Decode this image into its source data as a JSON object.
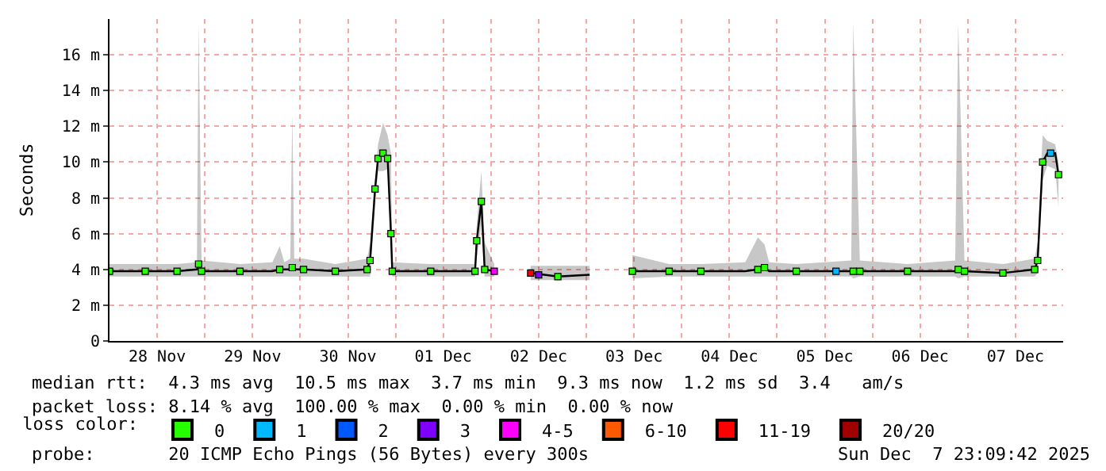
{
  "chart_data": {
    "type": "line",
    "ylabel": "Seconds",
    "legend_title": "loss color:",
    "legend": "bottom",
    "grid": true,
    "xlim": [
      "2025-11-28T00:00",
      "2025-12-08T00:00"
    ],
    "xticks": [
      {
        "value": "2025-11-28T12:00",
        "label": "28 Nov"
      },
      {
        "value": "2025-11-29T12:00",
        "label": "29 Nov"
      },
      {
        "value": "2025-11-30T12:00",
        "label": "30 Nov"
      },
      {
        "value": "2025-12-01T12:00",
        "label": "01 Dec"
      },
      {
        "value": "2025-12-02T12:00",
        "label": "02 Dec"
      },
      {
        "value": "2025-12-03T12:00",
        "label": "03 Dec"
      },
      {
        "value": "2025-12-04T12:00",
        "label": "04 Dec"
      },
      {
        "value": "2025-12-05T12:00",
        "label": "05 Dec"
      },
      {
        "value": "2025-12-06T12:00",
        "label": "06 Dec"
      },
      {
        "value": "2025-12-07T12:00",
        "label": "07 Dec"
      },
      {
        "value": "2025-11-29T00:00",
        "label": null
      },
      {
        "value": "2025-11-30T00:00",
        "label": null
      },
      {
        "value": "2025-12-01T00:00",
        "label": null
      },
      {
        "value": "2025-12-02T00:00",
        "label": null
      },
      {
        "value": "2025-12-03T00:00",
        "label": null
      },
      {
        "value": "2025-12-04T00:00",
        "label": null
      },
      {
        "value": "2025-12-05T00:00",
        "label": null
      },
      {
        "value": "2025-12-06T00:00",
        "label": null
      },
      {
        "value": "2025-12-07T00:00",
        "label": null
      }
    ],
    "ylim": [
      0,
      18
    ],
    "yticks": [
      0,
      {
        "value": 2,
        "label": "2 m"
      },
      {
        "value": 4,
        "label": "4 m"
      },
      {
        "value": 6,
        "label": "6 m"
      },
      {
        "value": 8,
        "label": "8 m"
      },
      {
        "value": 10,
        "label": "10 m"
      },
      {
        "value": 12,
        "label": "12 m"
      },
      {
        "value": 14,
        "label": "14 m"
      },
      {
        "value": 16,
        "label": "16 m"
      }
    ],
    "series": [
      {
        "color": "#000000",
        "marker": "none",
        "x": [
          "2025-11-28T00:00",
          "2025-11-28T09:00",
          "2025-11-28T17:00",
          "2025-11-28T22:00",
          "2025-11-28T22:25",
          "2025-11-28T23:10",
          "2025-11-29T08:50",
          "2025-11-29T17:00",
          "2025-11-29T18:50",
          "2025-11-29T20:00",
          "2025-11-29T21:30",
          "2025-11-29T22:00",
          "2025-11-29T22:30",
          "2025-11-30T00:50",
          "2025-11-30T08:50",
          "2025-11-30T16:50",
          "2025-11-30T17:35",
          "2025-11-30T18:50",
          "2025-11-30T19:35",
          "2025-11-30T20:50",
          "2025-11-30T22:00",
          "2025-11-30T22:50",
          "2025-11-30T23:10",
          "2025-12-01T08:50",
          "2025-12-01T20:00",
          "2025-12-01T20:25",
          "2025-12-01T21:35",
          "2025-12-01T22:25",
          "2025-12-02T00:50",
          "2025-12-02T04:50",
          "2025-12-02T10:00",
          "2025-12-02T16:50",
          "2025-12-03T00:50",
          "2025-12-03T04:50",
          "2025-12-03T11:35",
          "2025-12-03T20:50",
          "2025-12-04T04:50",
          "2025-12-04T16:00",
          "2025-12-04T19:10",
          "2025-12-04T20:50",
          "2025-12-04T22:00",
          "2025-12-05T04:50",
          "2025-12-05T18:40",
          "2025-12-05T19:10",
          "2025-12-05T20:50",
          "2025-12-06T08:50",
          "2025-12-06T20:50",
          "2025-12-06T21:35",
          "2025-12-06T23:10",
          "2025-12-07T08:50",
          "2025-12-07T16:50",
          "2025-12-07T17:35",
          "2025-12-07T18:50",
          "2025-12-07T20:00",
          "2025-12-07T22:00",
          "2025-12-07T22:50"
        ],
        "values": [
          3.9,
          3.9,
          3.9,
          4.0,
          4.3,
          3.9,
          3.9,
          3.9,
          4.0,
          4.0,
          4.0,
          4.1,
          4.0,
          4.0,
          3.9,
          4.0,
          4.5,
          8.5,
          10.2,
          10.5,
          10.2,
          6.0,
          3.9,
          3.9,
          3.9,
          5.6,
          7.8,
          4.0,
          3.9,
          null,
          3.8,
          3.6,
          3.7,
          null,
          3.9,
          3.9,
          3.9,
          3.9,
          4.0,
          4.1,
          3.9,
          3.9,
          3.9,
          3.9,
          3.9,
          3.9,
          3.9,
          4.0,
          3.9,
          3.8,
          4.0,
          4.5,
          10.0,
          10.5,
          10.5,
          9.3
        ],
        "lower": [
          3.6,
          3.6,
          3.6,
          3.6,
          3.6,
          3.6,
          3.6,
          3.6,
          3.6,
          3.6,
          3.6,
          3.6,
          3.6,
          3.6,
          3.6,
          3.6,
          3.6,
          7.5,
          9.5,
          9.5,
          9.6,
          5.5,
          3.6,
          3.6,
          3.6,
          4.6,
          6.5,
          3.6,
          3.6,
          null,
          3.4,
          3.4,
          3.4,
          null,
          3.5,
          3.6,
          3.6,
          3.6,
          3.6,
          3.6,
          3.6,
          3.6,
          3.6,
          3.5,
          3.6,
          3.6,
          3.6,
          3.5,
          3.6,
          3.6,
          3.6,
          3.8,
          9.0,
          9.8,
          9.6,
          7.5
        ],
        "upper": [
          4.3,
          4.3,
          4.3,
          4.4,
          17.8,
          4.5,
          4.3,
          4.4,
          5.3,
          4.4,
          4.6,
          12.7,
          4.6,
          4.6,
          4.3,
          4.6,
          5.5,
          9.0,
          11.0,
          12.2,
          11.5,
          10.5,
          4.4,
          4.3,
          4.3,
          6.5,
          9.5,
          5.5,
          4.3,
          null,
          4.2,
          4.2,
          4.2,
          null,
          4.8,
          4.3,
          4.3,
          4.4,
          5.8,
          5.4,
          4.4,
          4.3,
          4.5,
          17.8,
          4.5,
          4.3,
          4.5,
          17.8,
          4.5,
          4.3,
          4.6,
          5.5,
          11.5,
          11.2,
          11.0,
          10.0
        ]
      },
      {
        "type": "scatter",
        "name": "0",
        "color": "#26ff00",
        "marker": "square",
        "x": [
          "2025-11-28T00:00",
          "2025-11-28T09:00",
          "2025-11-28T17:00",
          "2025-11-28T22:25",
          "2025-11-28T23:10",
          "2025-11-29T08:50",
          "2025-11-29T18:50",
          "2025-11-29T22:00",
          "2025-11-30T00:50",
          "2025-11-30T08:50",
          "2025-11-30T16:50",
          "2025-11-30T17:35",
          "2025-11-30T18:50",
          "2025-11-30T19:35",
          "2025-11-30T20:50",
          "2025-11-30T22:00",
          "2025-11-30T22:50",
          "2025-11-30T23:10",
          "2025-12-01T08:50",
          "2025-12-01T20:00",
          "2025-12-01T20:25",
          "2025-12-01T21:35",
          "2025-12-01T22:25",
          "2025-12-02T16:50",
          "2025-12-03T11:35",
          "2025-12-03T20:50",
          "2025-12-04T04:50",
          "2025-12-04T19:10",
          "2025-12-04T20:50",
          "2025-12-05T04:50",
          "2025-12-05T19:10",
          "2025-12-05T20:50",
          "2025-12-06T08:50",
          "2025-12-06T21:35",
          "2025-12-06T23:10",
          "2025-12-07T08:50",
          "2025-12-07T16:50",
          "2025-12-07T17:35",
          "2025-12-07T18:50",
          "2025-12-07T22:50"
        ],
        "values": [
          3.9,
          3.9,
          3.9,
          4.3,
          3.9,
          3.9,
          4.0,
          4.1,
          4.0,
          3.9,
          4.0,
          4.5,
          8.5,
          10.2,
          10.5,
          10.2,
          6.0,
          3.9,
          3.9,
          3.9,
          5.6,
          7.8,
          4.0,
          3.6,
          3.9,
          3.9,
          3.9,
          4.0,
          4.1,
          3.9,
          3.9,
          3.9,
          3.9,
          4.0,
          3.9,
          3.8,
          4.0,
          4.5,
          10.0,
          9.3
        ]
      },
      {
        "type": "scatter",
        "name": "1",
        "color": "#00b8ff",
        "marker": "square",
        "x": [
          "2025-12-05T14:50",
          "2025-12-07T20:50"
        ],
        "values": [
          3.9,
          10.5
        ]
      },
      {
        "type": "scatter",
        "name": "2",
        "color": "#0059ff",
        "marker": "square"
      },
      {
        "type": "scatter",
        "name": "3",
        "color": "#7e00ff",
        "marker": "square",
        "x": [
          "2025-12-02T12:00"
        ],
        "values": [
          3.7
        ]
      },
      {
        "type": "scatter",
        "name": "4-5",
        "color": "#ff00ff",
        "marker": "square",
        "x": [
          "2025-12-02T00:50"
        ],
        "values": [
          3.9
        ]
      },
      {
        "type": "scatter",
        "name": "6-10",
        "color": "#ff5900",
        "marker": "square"
      },
      {
        "type": "scatter",
        "name": "11-19",
        "color": "#ff0000",
        "marker": "square",
        "x": [
          "2025-12-02T10:00"
        ],
        "values": [
          3.8
        ]
      },
      {
        "type": "scatter",
        "name": "20/20",
        "color": "#a10000",
        "marker": "square"
      }
    ],
    "annotations": [
      "median rtt:  4.3 ms avg  10.5 ms max  3.7 ms min  9.3 ms now  1.2 ms sd  3.4   am/s",
      "packet loss: 8.14 % avg  100.00 % max  0.00 % min  0.00 % now",
      "probe:       20 ICMP Echo Pings (56 Bytes) every 300s",
      "Sun Dec  7 23:09:42 2025"
    ]
  }
}
